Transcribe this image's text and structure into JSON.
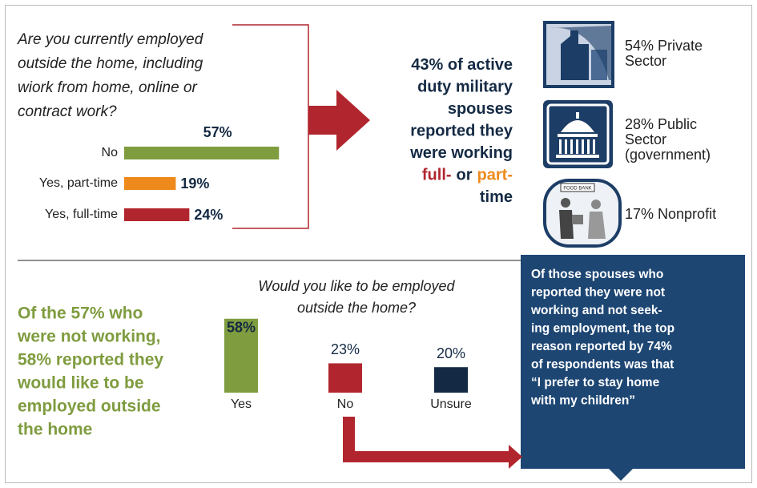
{
  "chart_data": [
    {
      "type": "hbar",
      "title": [
        "Are you currently employed",
        "outside the home, including",
        "wiork from home, online or",
        "contract work?"
      ],
      "categories": [
        "No",
        "Yes, part-time",
        "Yes, full-time"
      ],
      "values": [
        57,
        19,
        24
      ],
      "value_labels": [
        "57%",
        "19%",
        "24%"
      ],
      "colors": [
        "#7f9c3f",
        "#ee8a1c",
        "#b1262e"
      ]
    },
    {
      "type": "bar",
      "title": [
        "Would you like to be employed",
        "outside the home?"
      ],
      "categories": [
        "Yes",
        "No",
        "Unsure"
      ],
      "values": [
        58,
        23,
        20
      ],
      "value_labels": [
        "58%",
        "23%",
        "20%"
      ],
      "colors": [
        "#7f9c3f",
        "#b1262e",
        "#142a44"
      ]
    }
  ],
  "callout": {
    "lines": [
      [
        {
          "text": "43% of active"
        }
      ],
      [
        {
          "text": "duty military"
        }
      ],
      [
        {
          "text": "spouses"
        }
      ],
      [
        {
          "text": "reported they"
        }
      ],
      [
        {
          "text": "were working"
        }
      ],
      [
        {
          "text": "full-",
          "color": "#b1262e"
        },
        {
          "text": "or"
        },
        {
          "text": "part-",
          "color": "#ee8a1c"
        }
      ],
      [
        {
          "text": "time"
        }
      ]
    ]
  },
  "sectors": [
    {
      "lines": [
        "54% Private",
        "Sector"
      ]
    },
    {
      "lines": [
        "28% Public",
        "Sector",
        "(government)"
      ]
    },
    {
      "lines": [
        "17% Nonprofit"
      ]
    }
  ],
  "icon_text": "FOOD BANK",
  "summary": {
    "lines": [
      "Of the 57% who",
      "were not working,",
      "58% reported they",
      "would like to be",
      "employed outside",
      "the home"
    ]
  },
  "note": {
    "lines": [
      "Of those spouses who",
      "reported they were not",
      "working and not seek-",
      "ing employment, the top",
      "reason reported by 74%",
      "of respondents was that",
      "“I prefer to stay home",
      "with my children”"
    ]
  }
}
